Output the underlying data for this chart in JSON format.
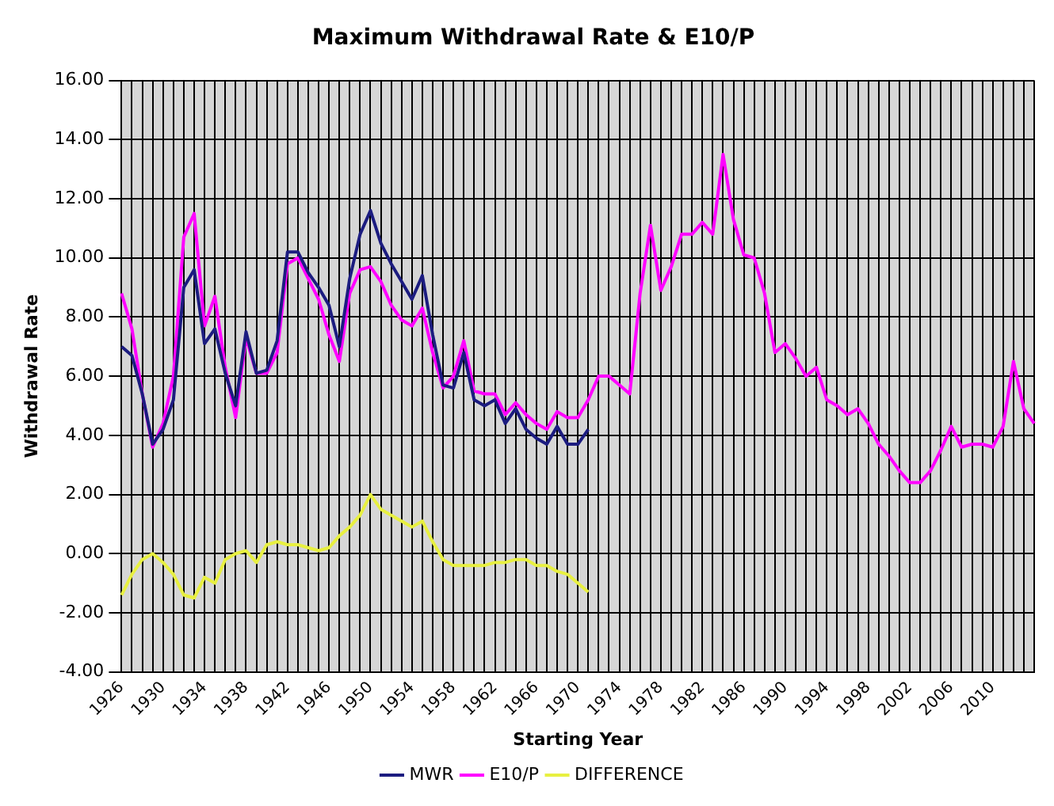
{
  "chart_data": {
    "type": "line",
    "title": "Maximum Withdrawal Rate & E10/P",
    "xlabel": "Starting Year",
    "ylabel": "Withdrawal Rate",
    "categories": [
      "1926",
      null,
      null,
      null,
      "1930",
      null,
      null,
      null,
      "1934",
      null,
      null,
      null,
      "1938",
      null,
      null,
      null,
      "1942",
      null,
      null,
      null,
      "1946",
      null,
      null,
      null,
      "1950",
      null,
      null,
      null,
      "1954",
      null,
      null,
      null,
      "1958",
      null,
      null,
      null,
      "1962",
      null,
      null,
      null,
      "1966",
      null,
      null,
      null,
      "1970",
      null,
      null,
      null,
      "1974",
      null,
      null,
      null,
      "1978",
      null,
      null,
      null,
      "1982",
      null,
      null,
      null,
      "1986",
      null,
      null,
      null,
      "1990",
      null,
      null,
      null,
      "1994",
      null,
      null,
      null,
      "1998",
      null,
      null,
      null,
      "2002",
      null,
      null,
      null,
      "2006",
      null,
      null,
      null,
      "2010",
      null,
      null,
      null,
      null
    ],
    "ylim": [
      -4,
      16
    ],
    "yticks": [
      {
        "value": -4,
        "label": "-4.00"
      },
      {
        "value": -2,
        "label": "-2.00"
      },
      {
        "value": 0,
        "label": "0.00"
      },
      {
        "value": 2,
        "label": "2.00"
      },
      {
        "value": 4,
        "label": "4.00"
      },
      {
        "value": 6,
        "label": "6.00"
      },
      {
        "value": 8,
        "label": "8.00"
      },
      {
        "value": 10,
        "label": "10.00"
      },
      {
        "value": 12,
        "label": "12.00"
      },
      {
        "value": 14,
        "label": "14.00"
      },
      {
        "value": 16,
        "label": "16.00"
      }
    ],
    "grid": true,
    "legend": "bottom",
    "series": [
      {
        "name": "MWR",
        "color": "#1c1c80",
        "values": [
          7.0,
          6.7,
          5.4,
          3.7,
          4.2,
          5.2,
          9.0,
          9.6,
          7.1,
          7.6,
          6.1,
          5.0,
          7.5,
          6.1,
          6.2,
          7.2,
          10.2,
          10.2,
          9.5,
          9.0,
          8.4,
          7.0,
          9.3,
          10.8,
          11.6,
          10.5,
          9.8,
          9.2,
          8.6,
          9.4,
          7.4,
          5.7,
          5.6,
          6.8,
          5.2,
          5.0,
          5.2,
          4.4,
          4.9,
          4.2,
          3.9,
          3.7,
          4.3,
          3.7,
          3.7,
          4.2,
          null,
          null,
          null,
          null,
          null,
          null,
          null,
          null,
          null,
          null,
          null,
          null,
          null,
          null,
          null,
          null,
          null,
          null,
          null,
          null,
          null,
          null,
          null,
          null,
          null,
          null,
          null,
          null,
          null,
          null,
          null,
          null,
          null,
          null,
          null,
          null,
          null,
          null,
          null,
          null,
          null,
          null,
          null
        ]
      },
      {
        "name": "E10/P",
        "color": "#ff00ff",
        "values": [
          8.8,
          7.6,
          5.4,
          3.6,
          4.4,
          6.0,
          10.7,
          11.5,
          7.7,
          8.7,
          6.3,
          4.6,
          7.3,
          6.1,
          6.1,
          6.8,
          9.8,
          10.0,
          9.3,
          8.6,
          7.4,
          6.5,
          8.8,
          9.6,
          9.7,
          9.2,
          8.4,
          7.9,
          7.7,
          8.3,
          6.8,
          5.6,
          6.0,
          7.2,
          5.5,
          5.4,
          5.4,
          4.7,
          5.1,
          4.7,
          4.4,
          4.2,
          4.8,
          4.6,
          4.6,
          5.2,
          6.0,
          6.0,
          5.7,
          5.4,
          8.8,
          11.1,
          8.9,
          9.7,
          10.8,
          10.8,
          11.2,
          10.8,
          13.5,
          11.3,
          10.1,
          10.0,
          8.8,
          6.8,
          7.1,
          6.6,
          6.0,
          6.3,
          5.2,
          5.0,
          4.7,
          4.9,
          4.4,
          3.7,
          3.3,
          2.8,
          2.4,
          2.4,
          2.8,
          3.5,
          4.3,
          3.6,
          3.7,
          3.7,
          3.6,
          4.3,
          6.5,
          4.9,
          4.4
        ]
      },
      {
        "name": "DIFFERENCE",
        "color": "#e8f040",
        "values": [
          -1.4,
          -0.7,
          -0.2,
          0.0,
          -0.3,
          -0.7,
          -1.4,
          -1.5,
          -0.8,
          -1.0,
          -0.2,
          0.0,
          0.1,
          -0.3,
          0.3,
          0.4,
          0.3,
          0.3,
          0.2,
          0.1,
          0.2,
          0.6,
          0.9,
          1.3,
          2.0,
          1.5,
          1.3,
          1.1,
          0.9,
          1.1,
          0.4,
          -0.2,
          -0.4,
          -0.4,
          -0.4,
          -0.4,
          -0.3,
          -0.3,
          -0.2,
          -0.2,
          -0.4,
          -0.4,
          -0.6,
          -0.7,
          -1.0,
          -1.3,
          null,
          null,
          null,
          null,
          null,
          null,
          null,
          null,
          null,
          null,
          null,
          null,
          null,
          null,
          null,
          null,
          null,
          null,
          null,
          null,
          null,
          null,
          null,
          null,
          null,
          null,
          null,
          null,
          null,
          null,
          null,
          null,
          null,
          null,
          null,
          null,
          null,
          null,
          null,
          null,
          null,
          null,
          null
        ]
      }
    ]
  }
}
